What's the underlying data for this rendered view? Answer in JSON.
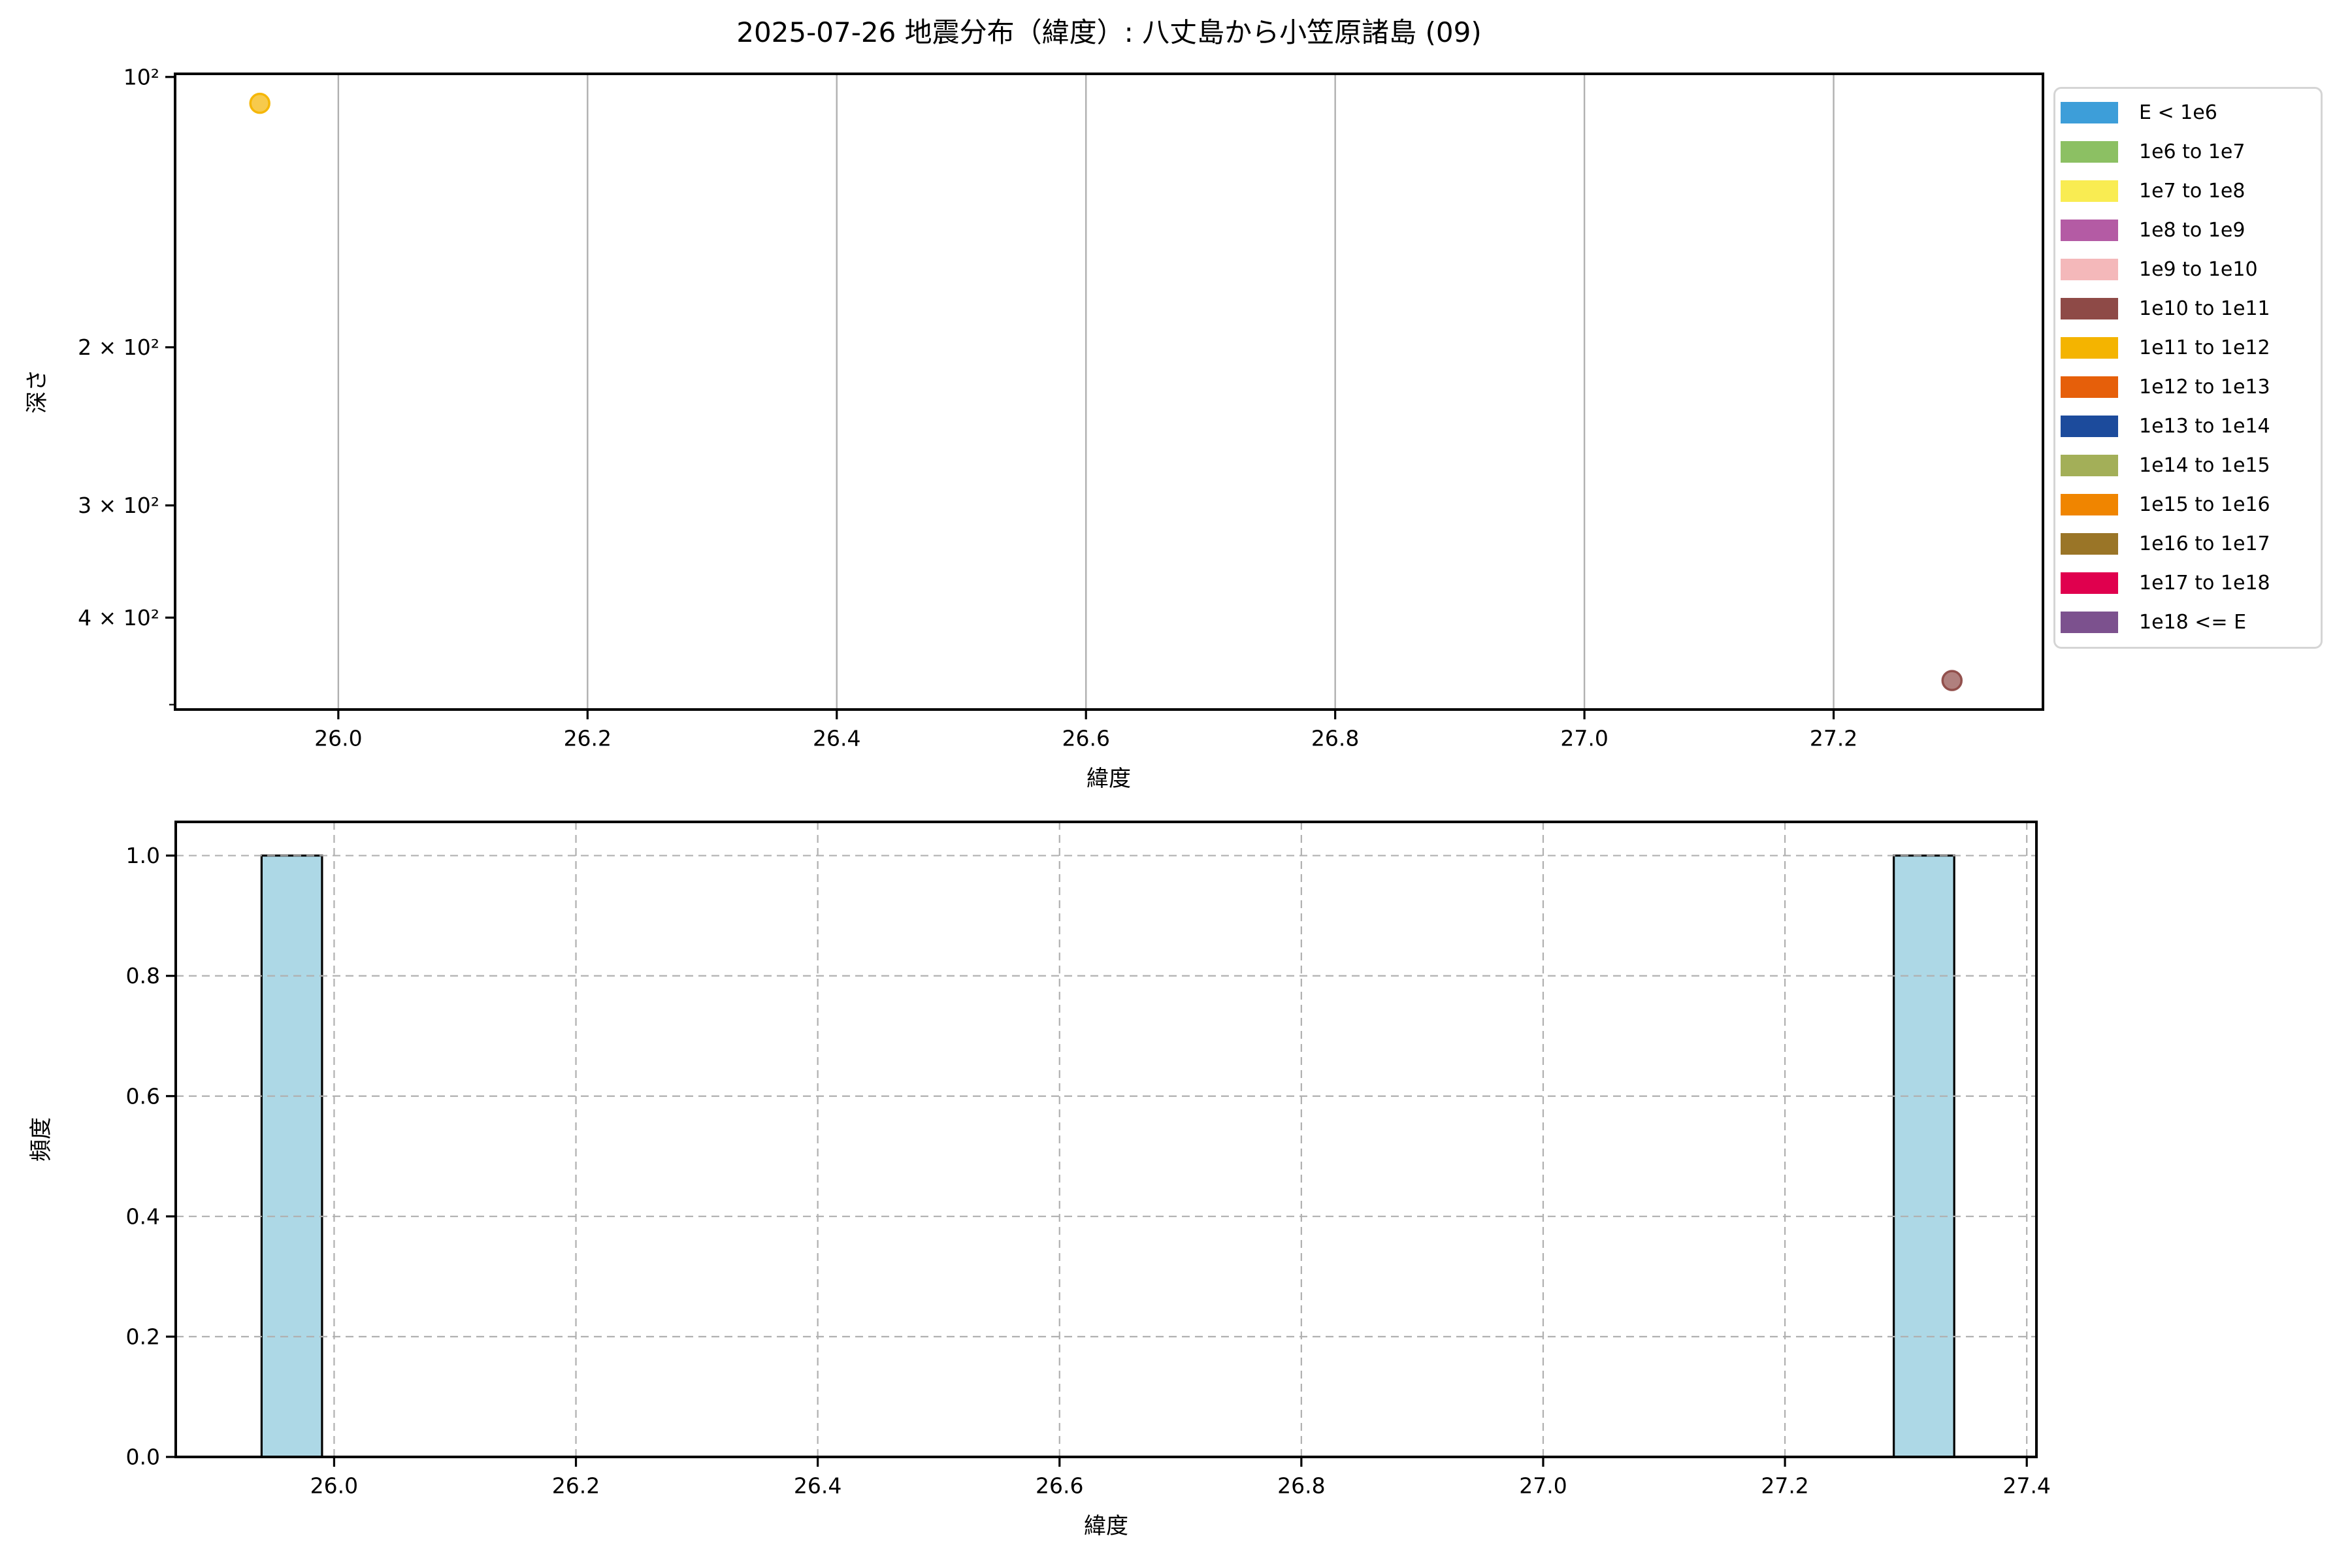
{
  "chart_data": [
    {
      "type": "scatter",
      "title": "2025-07-26 地震分布（緯度）: 八丈島から小笠原諸島 (09)",
      "xlabel": "緯度",
      "ylabel": "深さ",
      "xlim": [
        25.869,
        27.368
      ],
      "ylim": [
        99.2,
        506.3
      ],
      "yscale": "log",
      "y_inverted": true,
      "grid": {
        "vertical": "solid",
        "horizontal": "none"
      },
      "xticks": [
        26.0,
        26.2,
        26.4,
        26.6,
        26.8,
        27.0,
        27.2
      ],
      "yticks": [
        {
          "value": 100,
          "label": "10²"
        },
        {
          "value": 200,
          "label": "2 × 10²"
        },
        {
          "value": 300,
          "label": "3 × 10²"
        },
        {
          "value": 400,
          "label": "4 × 10²"
        }
      ],
      "yticks_minor": [
        500
      ],
      "points": [
        {
          "lat": 25.937,
          "depth": 107,
          "energy_bin": "1e11 to 1e12",
          "color": "#f4b400"
        },
        {
          "lat": 27.295,
          "depth": 470,
          "energy_bin": "1e10 to 1e11",
          "color": "#8e4a47"
        }
      ],
      "legend": {
        "position": "upper-right-outside",
        "entries": [
          {
            "label": "E < 1e6",
            "color": "#3d9ed9"
          },
          {
            "label": "1e6 to 1e7",
            "color": "#8cc063"
          },
          {
            "label": "1e7 to 1e8",
            "color": "#f9ec52"
          },
          {
            "label": "1e8 to 1e9",
            "color": "#b45ba4"
          },
          {
            "label": "1e9 to 1e10",
            "color": "#f4b8ba"
          },
          {
            "label": "1e10 to 1e11",
            "color": "#8e4a47"
          },
          {
            "label": "1e11 to 1e12",
            "color": "#f4b400"
          },
          {
            "label": "1e12 to 1e13",
            "color": "#e65f0a"
          },
          {
            "label": "1e13 to 1e14",
            "color": "#1c4b9c"
          },
          {
            "label": "1e14 to 1e15",
            "color": "#a3af58"
          },
          {
            "label": "1e15 to 1e16",
            "color": "#f08500"
          },
          {
            "label": "1e16 to 1e17",
            "color": "#9a7527"
          },
          {
            "label": "1e17 to 1e18",
            "color": "#e0004e"
          },
          {
            "label": "1e18 <= E",
            "color": "#7c518e"
          }
        ]
      }
    },
    {
      "type": "histogram",
      "xlabel": "緯度",
      "ylabel": "頻度",
      "xlim": [
        25.869,
        27.408
      ],
      "ylim": [
        0,
        1.056
      ],
      "grid": {
        "vertical": "dashed",
        "horizontal": "dashed"
      },
      "xticks": [
        26.0,
        26.2,
        26.4,
        26.6,
        26.8,
        27.0,
        27.2,
        27.4
      ],
      "yticks": [
        0.0,
        0.2,
        0.4,
        0.6,
        0.8,
        1.0
      ],
      "bar_color": "#add8e6",
      "bar_edge_color": "#000000",
      "bars": [
        {
          "x0": 25.94,
          "x1": 25.99,
          "freq": 1.0
        },
        {
          "x0": 27.29,
          "x1": 27.34,
          "freq": 1.0
        }
      ]
    }
  ]
}
